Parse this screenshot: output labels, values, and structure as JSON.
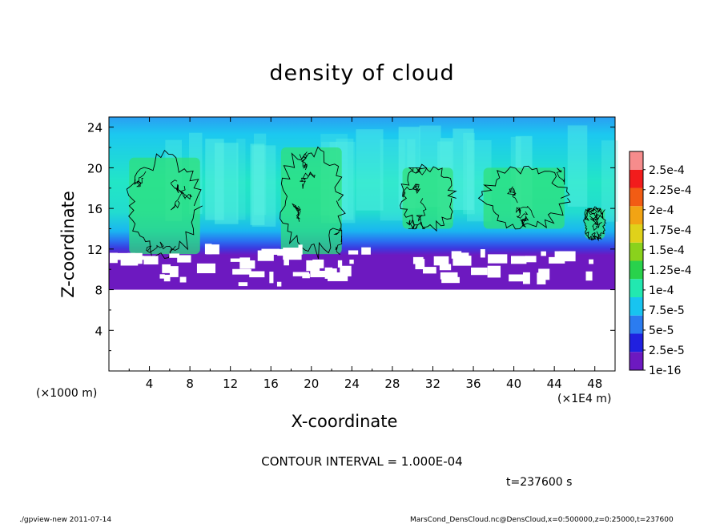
{
  "chart_data": {
    "type": "heatmap",
    "title": "density of cloud",
    "xlabel": "X-coordinate",
    "ylabel": "Z-coordinate",
    "x_unit_labels": [
      "(×1000 m)",
      "(×1E4 m)"
    ],
    "xlim": [
      0,
      50
    ],
    "ylim": [
      0,
      25
    ],
    "x_ticks": [
      "4",
      "8",
      "12",
      "16",
      "20",
      "24",
      "28",
      "32",
      "36",
      "40",
      "44",
      "48"
    ],
    "y_ticks": [
      "4",
      "8",
      "12",
      "16",
      "20",
      "24"
    ],
    "cloud_bottom": 8,
    "contour_interval_text": "CONTOUR INTERVAL = 1.000E-04",
    "time_text": "t=237600 s",
    "colorbar": {
      "levels": [
        "1e-16",
        "2.5e-5",
        "5e-5",
        "7.5e-5",
        "1e-4",
        "1.25e-4",
        "1.5e-4",
        "1.75e-4",
        "2e-4",
        "2.25e-4",
        "2.5e-4"
      ],
      "colors": [
        "#6d19c0",
        "#2020e0",
        "#2b7cf0",
        "#18c4f0",
        "#22e8b0",
        "#29d24c",
        "#8ad21c",
        "#e0d21a",
        "#f2a414",
        "#f25c14",
        "#f21c1c",
        "#f68c8c"
      ]
    },
    "dense_regions": [
      {
        "x": [
          2,
          9
        ],
        "z": [
          11.5,
          21
        ]
      },
      {
        "x": [
          17,
          23
        ],
        "z": [
          11.5,
          22
        ]
      },
      {
        "x": [
          29,
          34
        ],
        "z": [
          14,
          20
        ]
      },
      {
        "x": [
          37,
          45
        ],
        "z": [
          14,
          20
        ]
      },
      {
        "x": [
          47,
          49
        ],
        "z": [
          13,
          16
        ]
      }
    ]
  },
  "footer": {
    "left": "./gpview-new  2011-07-14",
    "right": "MarsCond_DensCloud.nc@DensCloud,x=0:500000,z=0:25000,t=237600"
  }
}
